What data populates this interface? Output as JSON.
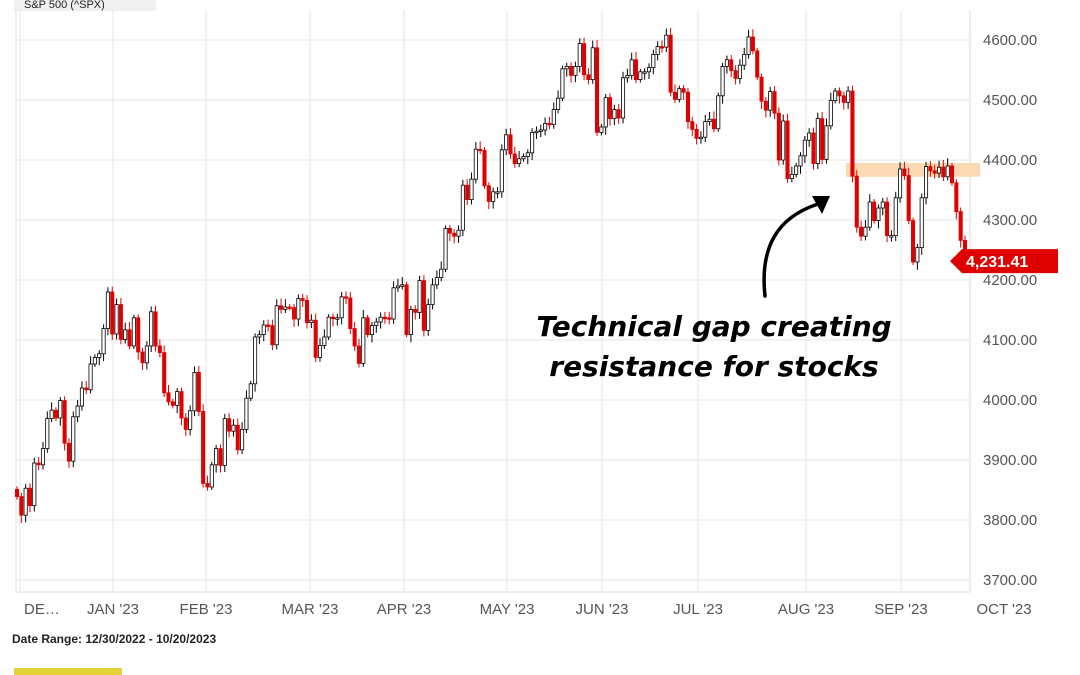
{
  "header": {
    "symbol_label": "S&P 500 (^SPX)"
  },
  "footer": {
    "date_range": "Date Range: 12/30/2022 - 10/20/2023"
  },
  "colors": {
    "up": "#000000",
    "down": "#e00000",
    "gap_zone": "#fbd9b4",
    "price_tag": "#e00000",
    "grid": "#e6e6e6"
  },
  "chart_data": {
    "type": "candlestick",
    "title": "S&P 500 (^SPX)",
    "ylim": [
      3680,
      4650
    ],
    "y_ticks": [
      {
        "value": 3700,
        "label": "3700.00"
      },
      {
        "value": 3800,
        "label": "3800.00"
      },
      {
        "value": 3900,
        "label": "3900.00"
      },
      {
        "value": 4000,
        "label": "4000.00"
      },
      {
        "value": 4100,
        "label": "4100.00"
      },
      {
        "value": 4200,
        "label": "4200.00"
      },
      {
        "value": 4300,
        "label": "4300.00"
      },
      {
        "value": 4400,
        "label": "4400.00"
      },
      {
        "value": 4500,
        "label": "4500.00"
      },
      {
        "value": 4600,
        "label": "4600.00"
      }
    ],
    "x_ticks": [
      "DE…",
      "JAN '23",
      "FEB '23",
      "MAR '23",
      "APR '23",
      "MAY '23",
      "JUN '23",
      "JUL '23",
      "AUG '23",
      "SEP '23",
      "OCT '23"
    ],
    "last_price": 4231.41,
    "last_price_label": "4,231.41",
    "gap_zone": {
      "low": 4372,
      "high": 4395
    },
    "annotation": [
      "Technical gap creating",
      "resistance for stocks"
    ],
    "closes": [
      3839,
      3808,
      3853,
      3824,
      3895,
      3892,
      3919,
      3969,
      3983,
      3970,
      3999,
      3928,
      3898,
      3972,
      3990,
      4020,
      4017,
      4060,
      4071,
      4077,
      4119,
      4180,
      4110,
      4159,
      4101,
      4117,
      4090,
      4137,
      4080,
      4062,
      4090,
      4147,
      4090,
      4079,
      4012,
      3997,
      3991,
      4014,
      3970,
      3951,
      3982,
      4046,
      3981,
      3861,
      3855,
      3892,
      3919,
      3891,
      3969,
      3948,
      3958,
      3917,
      3951,
      4003,
      4027,
      4105,
      4109,
      4125,
      4124,
      4092,
      4157,
      4151,
      4155,
      4154,
      4135,
      4169,
      4166,
      4129,
      4133,
      4071,
      4091,
      4105,
      4138,
      4136,
      4137,
      4172,
      4170,
      4119,
      4090,
      4061,
      4137,
      4109,
      4124,
      4130,
      4138,
      4137,
      4135,
      4187,
      4190,
      4192,
      4109,
      4151,
      4146,
      4199,
      4116,
      4159,
      4192,
      4204,
      4218,
      4286,
      4278,
      4273,
      4283,
      4358,
      4334,
      4368,
      4418,
      4416,
      4357,
      4331,
      4347,
      4347,
      4417,
      4442,
      4410,
      4394,
      4402,
      4406,
      4412,
      4446,
      4448,
      4450,
      4461,
      4459,
      4484,
      4503,
      4552,
      4556,
      4541,
      4556,
      4594,
      4542,
      4534,
      4587,
      4446,
      4455,
      4504,
      4469,
      4484,
      4470,
      4537,
      4541,
      4567,
      4534,
      4547,
      4547,
      4554,
      4576,
      4589,
      4588,
      4608,
      4513,
      4501,
      4519,
      4513,
      4464,
      4451,
      4436,
      4438,
      4464,
      4468,
      4452,
      4507,
      4556,
      4567,
      4549,
      4536,
      4558,
      4576,
      4605,
      4582,
      4538,
      4498,
      4483,
      4514,
      4478,
      4400,
      4465,
      4369,
      4376,
      4390,
      4407,
      4433,
      4445,
      4394,
      4469,
      4401,
      4457,
      4499,
      4515,
      4507,
      4496,
      4515,
      4373,
      4288,
      4273,
      4288,
      4330,
      4299,
      4320,
      4330,
      4274,
      4274,
      4337,
      4385,
      4374,
      4299,
      4230,
      4254,
      4337,
      4389,
      4382,
      4378,
      4388,
      4372,
      4390,
      4362,
      4314,
      4266,
      4231
    ]
  }
}
